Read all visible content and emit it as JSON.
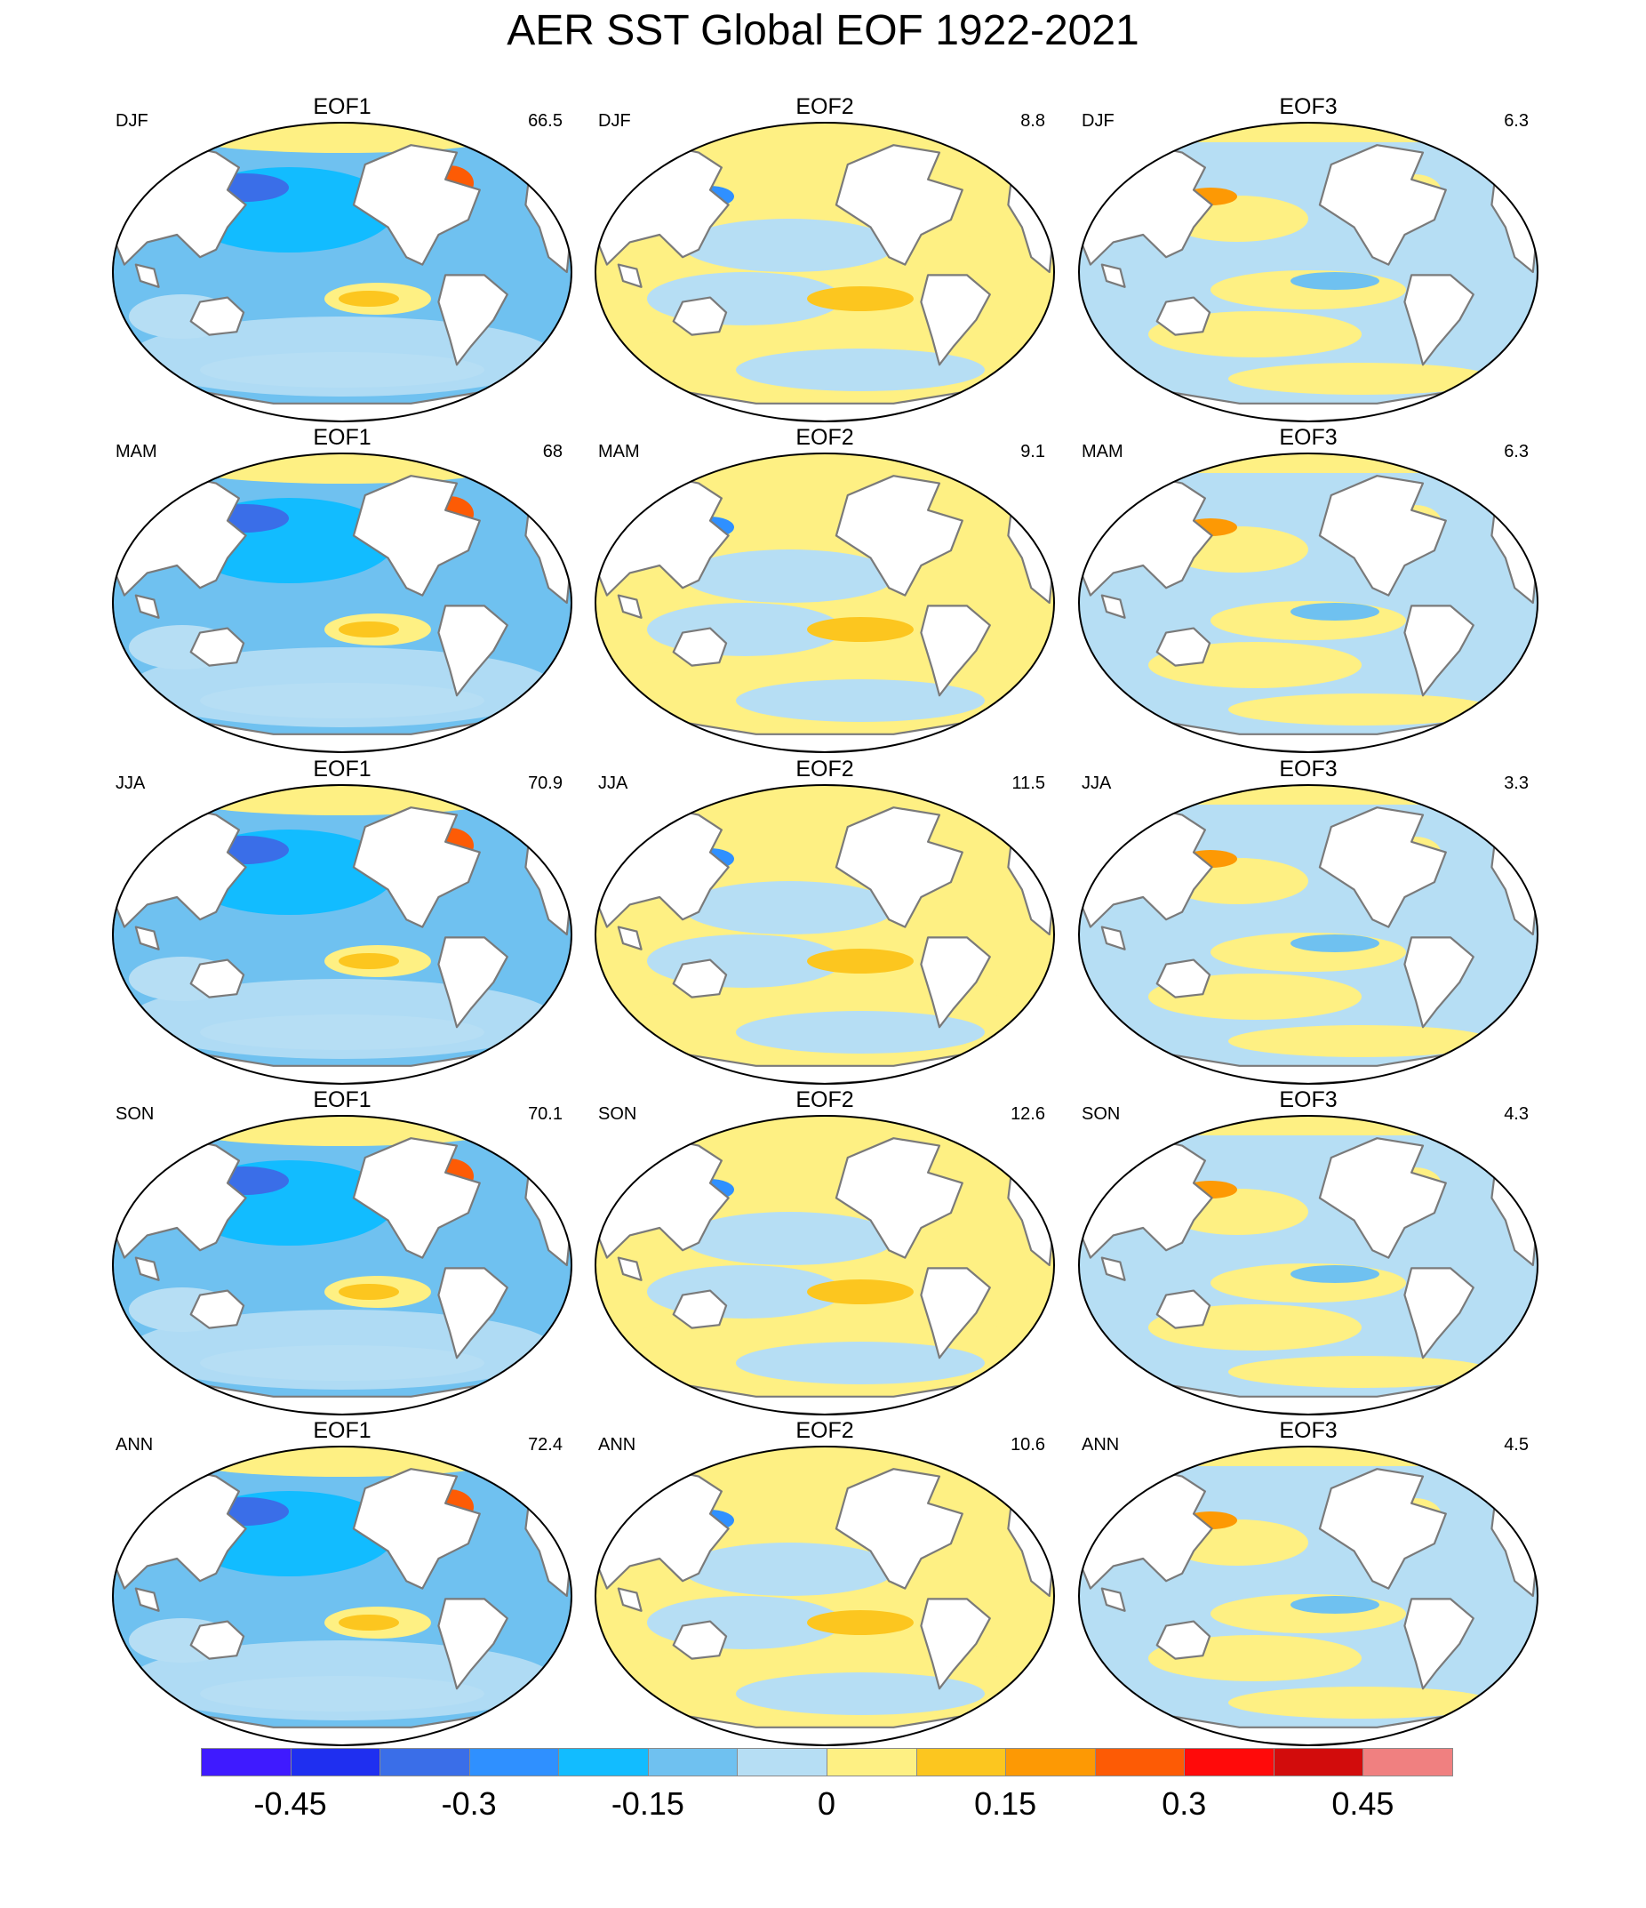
{
  "title": "AER SST Global EOF 1922-2021",
  "panels": [
    {
      "row": 0,
      "col": 0,
      "eof": "EOF1",
      "season": "DJF",
      "variance": "66.5"
    },
    {
      "row": 0,
      "col": 1,
      "eof": "EOF2",
      "season": "DJF",
      "variance": "8.8"
    },
    {
      "row": 0,
      "col": 2,
      "eof": "EOF3",
      "season": "DJF",
      "variance": "6.3"
    },
    {
      "row": 1,
      "col": 0,
      "eof": "EOF1",
      "season": "MAM",
      "variance": "68"
    },
    {
      "row": 1,
      "col": 1,
      "eof": "EOF2",
      "season": "MAM",
      "variance": "9.1"
    },
    {
      "row": 1,
      "col": 2,
      "eof": "EOF3",
      "season": "MAM",
      "variance": "6.3"
    },
    {
      "row": 2,
      "col": 0,
      "eof": "EOF1",
      "season": "JJA",
      "variance": "70.9"
    },
    {
      "row": 2,
      "col": 1,
      "eof": "EOF2",
      "season": "JJA",
      "variance": "11.5"
    },
    {
      "row": 2,
      "col": 2,
      "eof": "EOF3",
      "season": "JJA",
      "variance": "3.3"
    },
    {
      "row": 3,
      "col": 0,
      "eof": "EOF1",
      "season": "SON",
      "variance": "70.1"
    },
    {
      "row": 3,
      "col": 1,
      "eof": "EOF2",
      "season": "SON",
      "variance": "12.6"
    },
    {
      "row": 3,
      "col": 2,
      "eof": "EOF3",
      "season": "SON",
      "variance": "4.3"
    },
    {
      "row": 4,
      "col": 0,
      "eof": "EOF1",
      "season": "ANN",
      "variance": "72.4"
    },
    {
      "row": 4,
      "col": 1,
      "eof": "EOF2",
      "season": "ANN",
      "variance": "10.6"
    },
    {
      "row": 4,
      "col": 2,
      "eof": "EOF3",
      "season": "ANN",
      "variance": "4.5"
    }
  ],
  "colorbar": {
    "colors": [
      "#3f1aff",
      "#1f2ff0",
      "#3a6ee8",
      "#2f90ff",
      "#12bcff",
      "#6fc1f0",
      "#b6def4",
      "#fef083",
      "#fcc61f",
      "#fd9904",
      "#fd5b05",
      "#ff0a0a",
      "#d20c0c",
      "#f08080"
    ],
    "labels": [
      "-0.45",
      "-0.3",
      "-0.15",
      "0",
      "0.15",
      "0.3",
      "0.45"
    ]
  },
  "legend_colors": {
    "land": "#ffffff",
    "coastline": "#7a7a7a",
    "map_border": "#000000"
  }
}
